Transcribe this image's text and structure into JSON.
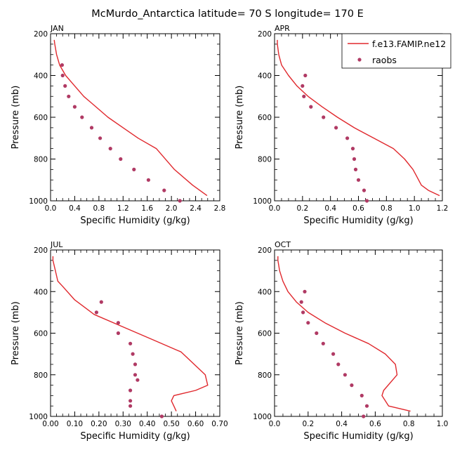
{
  "figure_title": "McMurdo_Antarctica  latitude= 70 S longitude= 170 E",
  "legend": {
    "entries": [
      {
        "label": "f.e13.FAMIP.ne12",
        "marker": "line",
        "color": "#e0282d"
      },
      {
        "label": "raobs",
        "marker": "dot",
        "color": "#b03a64"
      }
    ]
  },
  "colors": {
    "model": "#e0282d",
    "obs": "#b03a64",
    "axis": "#000000"
  },
  "chart_data": [
    {
      "type": "line",
      "panel": "JAN",
      "title": "JAN",
      "xlabel": "Specific Humidity (g/kg)",
      "ylabel": "Pressure (mb)",
      "xlim": [
        0,
        2.8
      ],
      "ylim": [
        200,
        1000
      ],
      "y_inverted": true,
      "xticks": [
        0,
        0.4,
        0.8,
        1.2,
        1.6,
        2.0,
        2.4,
        2.8
      ],
      "xtick_labels": [
        "0.0",
        "0.4",
        "0.8",
        "1.2",
        "1.6",
        "2.0",
        "2.4",
        "2.8"
      ],
      "yticks": [
        200,
        400,
        600,
        800,
        1000
      ],
      "ytick_labels": [
        "200",
        "400",
        "600",
        "800",
        "1000"
      ],
      "series": [
        {
          "name": "f.e13.FAMIP.ne12",
          "style": "line",
          "x": [
            0.06,
            0.07,
            0.1,
            0.15,
            0.25,
            0.4,
            0.55,
            0.75,
            0.95,
            1.2,
            1.45,
            1.75,
            2.05,
            2.35,
            2.59
          ],
          "y": [
            230,
            250,
            300,
            350,
            400,
            450,
            500,
            550,
            600,
            650,
            700,
            750,
            850,
            925,
            975
          ]
        },
        {
          "name": "raobs",
          "style": "scatter",
          "x": [
            0.19,
            0.2,
            0.24,
            0.3,
            0.4,
            0.52,
            0.68,
            0.82,
            0.99,
            1.16,
            1.38,
            1.62,
            1.88,
            2.14
          ],
          "y": [
            350,
            400,
            450,
            500,
            550,
            600,
            650,
            700,
            750,
            800,
            850,
            900,
            950,
            1000
          ]
        }
      ]
    },
    {
      "type": "line",
      "panel": "APR",
      "title": "APR",
      "xlabel": "Specific Humidity (g/kg)",
      "ylabel": "Pressure (mb)",
      "xlim": [
        0,
        1.2
      ],
      "ylim": [
        200,
        1000
      ],
      "y_inverted": true,
      "xticks": [
        0,
        0.2,
        0.4,
        0.6,
        0.8,
        1.0,
        1.2
      ],
      "xtick_labels": [
        "0.0",
        "0.2",
        "0.4",
        "0.6",
        "0.8",
        "1.0",
        "1.2"
      ],
      "yticks": [
        200,
        400,
        600,
        800,
        1000
      ],
      "ytick_labels": [
        "200",
        "400",
        "600",
        "800",
        "1000"
      ],
      "series": [
        {
          "name": "f.e13.FAMIP.ne12",
          "style": "line",
          "x": [
            0.02,
            0.02,
            0.03,
            0.05,
            0.1,
            0.16,
            0.24,
            0.34,
            0.45,
            0.57,
            0.71,
            0.85,
            0.93,
            0.99,
            1.01,
            1.05,
            1.1,
            1.18
          ],
          "y": [
            230,
            250,
            300,
            350,
            400,
            450,
            500,
            550,
            600,
            650,
            700,
            750,
            800,
            850,
            875,
            925,
            950,
            975
          ]
        },
        {
          "name": "raobs",
          "style": "scatter",
          "x": [
            0.22,
            0.2,
            0.21,
            0.26,
            0.35,
            0.44,
            0.52,
            0.56,
            0.57,
            0.58,
            0.6,
            0.64,
            0.66
          ],
          "y": [
            400,
            450,
            500,
            550,
            600,
            650,
            700,
            750,
            800,
            850,
            900,
            950,
            1000
          ]
        }
      ]
    },
    {
      "type": "line",
      "panel": "JUL",
      "title": "JUL",
      "xlabel": "Specific Humidity (g/kg)",
      "ylabel": "Pressure (mb)",
      "xlim": [
        0,
        0.7
      ],
      "ylim": [
        200,
        1000
      ],
      "y_inverted": true,
      "xticks": [
        0,
        0.1,
        0.2,
        0.3,
        0.4,
        0.5,
        0.6,
        0.7
      ],
      "xtick_labels": [
        "0.00",
        "0.10",
        "0.20",
        "0.30",
        "0.40",
        "0.50",
        "0.60",
        "0.70"
      ],
      "yticks": [
        200,
        400,
        600,
        800,
        1000
      ],
      "ytick_labels": [
        "200",
        "400",
        "600",
        "800",
        "1000"
      ],
      "series": [
        {
          "name": "f.e13.FAMIP.ne12",
          "style": "line",
          "x": [
            0.01,
            0.01,
            0.02,
            0.03,
            0.05,
            0.1,
            0.18,
            0.3,
            0.42,
            0.54,
            0.64,
            0.65,
            0.6,
            0.51,
            0.5,
            0.51,
            0.52
          ],
          "y": [
            230,
            250,
            300,
            350,
            375,
            440,
            510,
            570,
            630,
            690,
            800,
            850,
            875,
            900,
            925,
            950,
            975
          ]
        },
        {
          "name": "raobs",
          "style": "scatter",
          "x": [
            0.21,
            0.19,
            0.28,
            0.28,
            0.33,
            0.34,
            0.35,
            0.35,
            0.36,
            0.33,
            0.33,
            0.33,
            0.46
          ],
          "y": [
            450,
            500,
            550,
            600,
            650,
            700,
            750,
            800,
            825,
            875,
            925,
            950,
            1000
          ]
        }
      ]
    },
    {
      "type": "line",
      "panel": "OCT",
      "title": "OCT",
      "xlabel": "Specific Humidity (g/kg)",
      "ylabel": "Pressure (mb)",
      "xlim": [
        0,
        1.0
      ],
      "ylim": [
        200,
        1000
      ],
      "y_inverted": true,
      "xticks": [
        0,
        0.2,
        0.4,
        0.6,
        0.8,
        1.0
      ],
      "xtick_labels": [
        "0.0",
        "0.2",
        "0.4",
        "0.6",
        "0.8",
        "1.0"
      ],
      "yticks": [
        200,
        400,
        600,
        800,
        1000
      ],
      "ytick_labels": [
        "200",
        "400",
        "600",
        "800",
        "1000"
      ],
      "series": [
        {
          "name": "f.e13.FAMIP.ne12",
          "style": "line",
          "x": [
            0.02,
            0.02,
            0.03,
            0.05,
            0.08,
            0.13,
            0.2,
            0.3,
            0.42,
            0.56,
            0.66,
            0.72,
            0.73,
            0.65,
            0.64,
            0.68,
            0.81
          ],
          "y": [
            230,
            250,
            300,
            350,
            400,
            450,
            500,
            550,
            600,
            650,
            700,
            750,
            800,
            875,
            900,
            950,
            975
          ]
        },
        {
          "name": "raobs",
          "style": "scatter",
          "x": [
            0.18,
            0.16,
            0.17,
            0.2,
            0.25,
            0.29,
            0.35,
            0.38,
            0.42,
            0.46,
            0.52,
            0.55,
            0.53
          ],
          "y": [
            400,
            450,
            500,
            550,
            600,
            650,
            700,
            750,
            800,
            850,
            900,
            950,
            1000
          ]
        }
      ]
    }
  ]
}
